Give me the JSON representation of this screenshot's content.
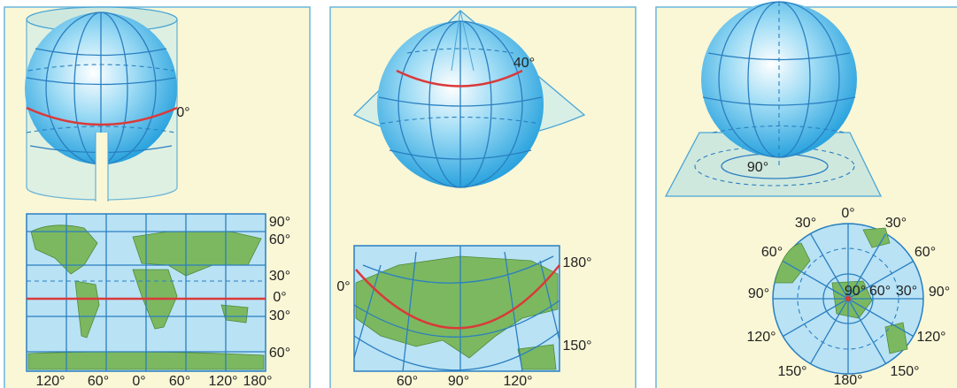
{
  "panels": [
    {
      "globe_labels": [
        "0°"
      ],
      "map_side_labels": [
        "90°",
        "60°",
        "30°",
        "0°",
        "30°",
        "60°"
      ],
      "map_bottom_labels": [
        "120°",
        "60°",
        "0°",
        "60°",
        "120°",
        "180°"
      ]
    },
    {
      "globe_labels": [
        "40°"
      ],
      "map_side_labels": [
        "0°",
        "180°",
        "150°"
      ],
      "map_bottom_labels": [
        "60°",
        "90°",
        "120°"
      ]
    },
    {
      "globe_labels": [
        "90°"
      ],
      "map_side_labels": [
        "0°",
        "30°",
        "30°",
        "60°",
        "60°",
        "90°",
        "90°",
        "120°",
        "120°",
        "150°",
        "150°",
        "180°"
      ],
      "map_bottom_labels": [
        "90°",
        "60°",
        "30°"
      ]
    }
  ]
}
